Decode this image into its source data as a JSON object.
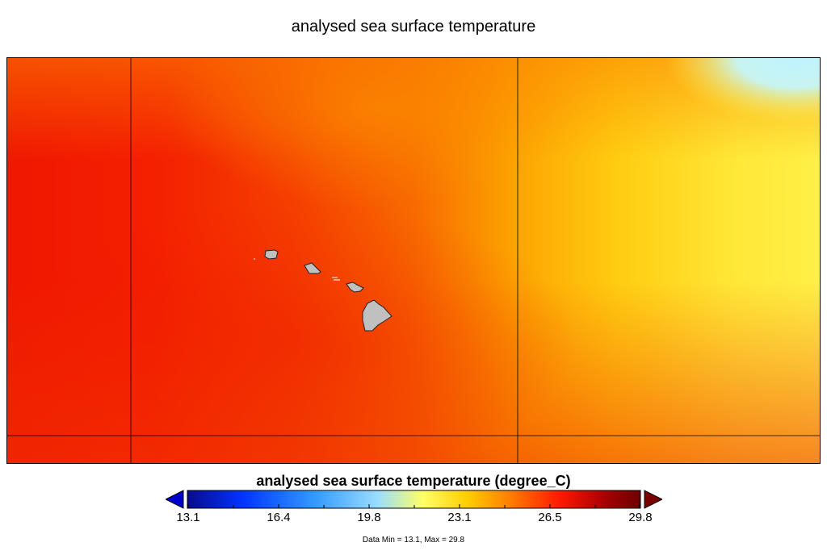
{
  "title": "analysed sea surface temperature",
  "colorbar": {
    "title": "analysed sea surface temperature (degree_C)",
    "min": 13.1,
    "max": 29.8,
    "ticks": [
      "13.1",
      "16.4",
      "19.8",
      "23.1",
      "26.5",
      "29.8"
    ],
    "colors": [
      "#0a0a8c",
      "#0033ff",
      "#3399ff",
      "#99ddff",
      "#ffff66",
      "#ffcc00",
      "#ff7700",
      "#ff1a00",
      "#aa0000",
      "#6b0000"
    ]
  },
  "data_range": "Data Min = 13.1, Max = 29.8",
  "map": {
    "land_color": "#c0c0c0",
    "features": [
      "hawaiian-islands"
    ]
  }
}
